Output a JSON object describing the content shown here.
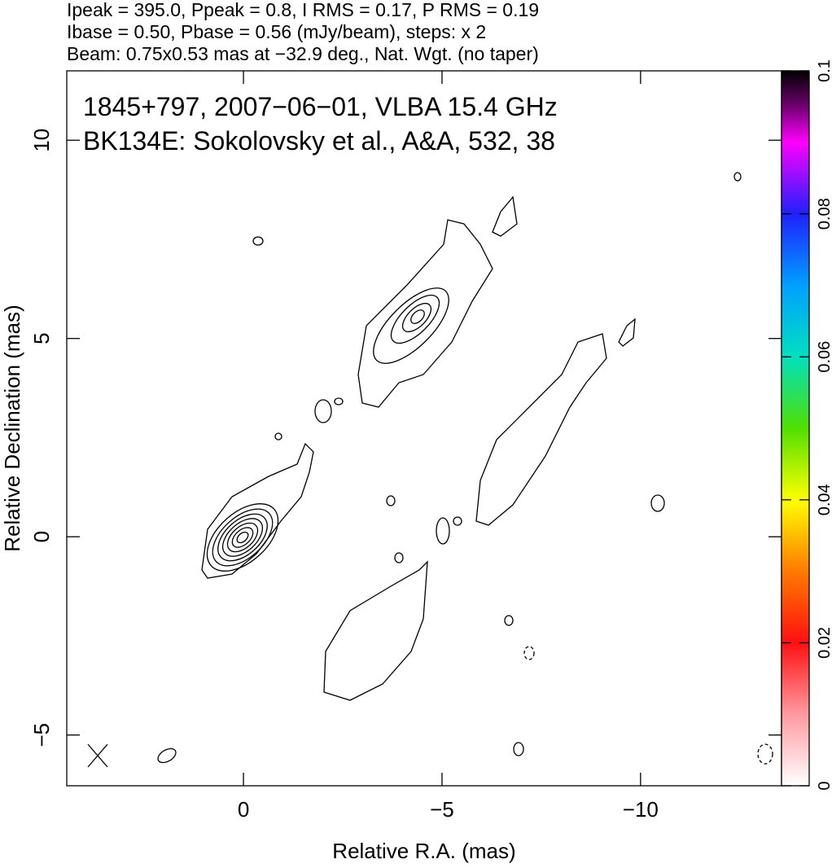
{
  "chart_data": {
    "type": "contour",
    "header_lines": [
      "Ipeak = 395.0, Ppeak = 0.8, I RMS = 0.17, P RMS = 0.19",
      "Ibase = 0.50, Pbase = 0.56 (mJy/beam), steps: x 2",
      "Beam: 0.75x0.53 mas at −32.9 deg., Nat. Wgt. (no taper)"
    ],
    "annotations": [
      "1845+797, 2007−06−01, VLBA 15.4 GHz",
      "BK134E: Sokolovsky et al., A&A, 532, 38"
    ],
    "x_label": "Relative R.A. (mas)",
    "y_label": "Relative Declination (mas)",
    "xlim": [
      4.45,
      -13.55
    ],
    "ylim": [
      -6.28,
      11.75
    ],
    "xticks": [
      0,
      {
        "value": -5,
        "label": "−5"
      },
      {
        "value": -10,
        "label": "−10"
      }
    ],
    "yticks": [
      {
        "value": -5,
        "label": "−5"
      },
      0,
      5,
      10
    ],
    "colorbar": {
      "lim": [
        0,
        0.1
      ],
      "ticks": [
        0,
        0.02,
        0.04,
        0.06,
        0.08,
        0.1
      ]
    }
  }
}
